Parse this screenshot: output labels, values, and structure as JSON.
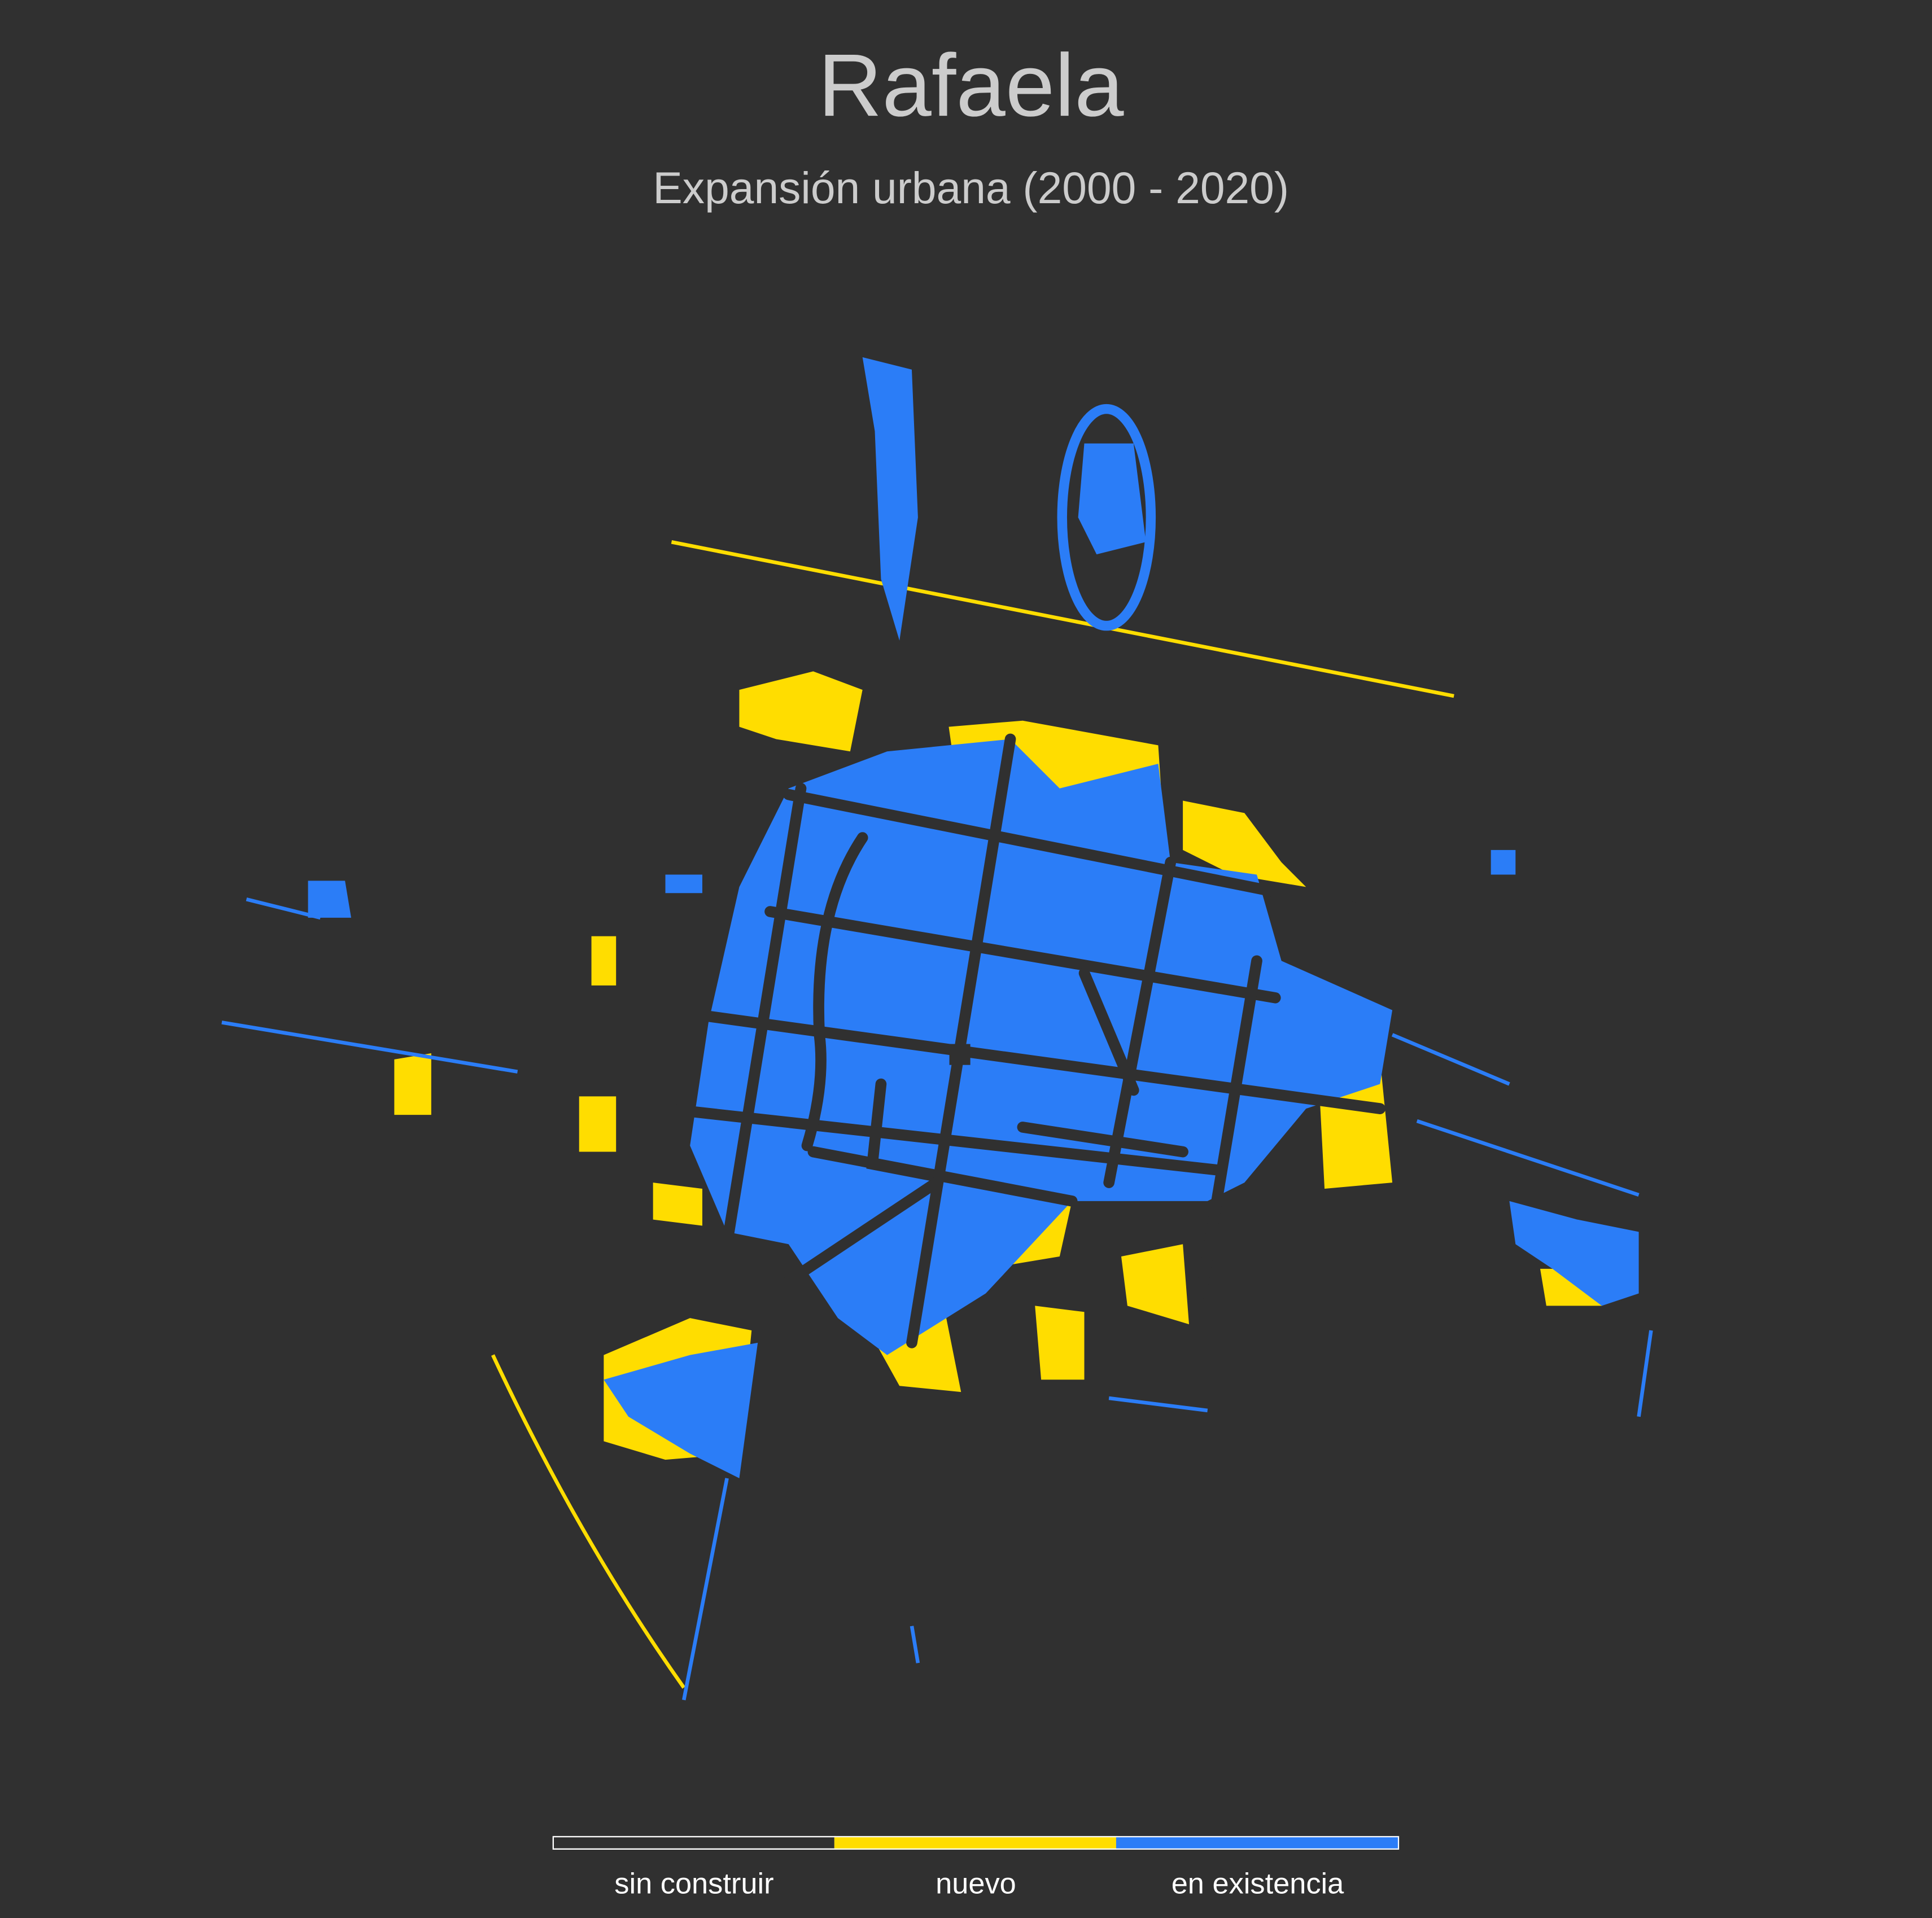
{
  "title": "Rafaela",
  "subtitle": "Expansión urbana (2000 - 2020)",
  "legend": [
    {
      "name": "sin construir",
      "color": "#303030"
    },
    {
      "name": "nuevo",
      "color": "#ffdd00"
    },
    {
      "name": "en existencia",
      "color": "#2b7df7"
    }
  ]
}
